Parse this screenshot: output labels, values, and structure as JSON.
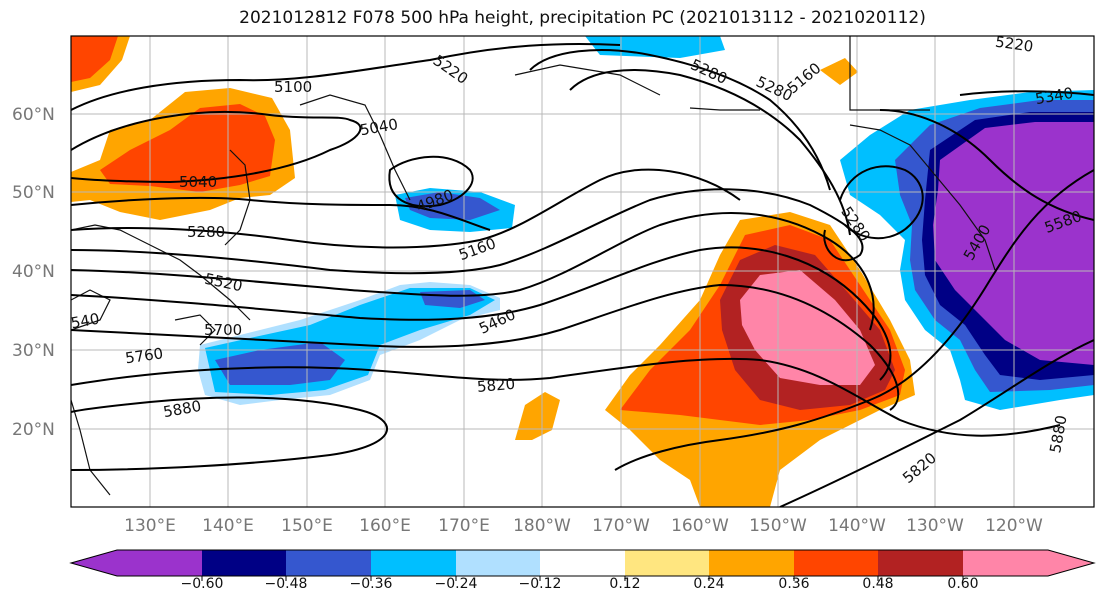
{
  "title": "2021012812 F078 500 hPa height, precipitation PC (2021013112 - 2021020112)",
  "map": {
    "lat_labels": [
      "60°N",
      "50°N",
      "40°N",
      "30°N",
      "20°N"
    ],
    "lon_labels": [
      "130°E",
      "140°E",
      "150°E",
      "160°E",
      "170°E",
      "180°W",
      "170°W",
      "160°W",
      "150°W",
      "140°W",
      "130°W",
      "120°W"
    ],
    "contour_labels": [
      "5100",
      "5220",
      "5280",
      "5280",
      "5160",
      "5040",
      "5040",
      "4980",
      "5160",
      "5280",
      "5520",
      "5460",
      "5700",
      "5760",
      "5820",
      "5880",
      "5820",
      "5880",
      "5220",
      "5340",
      "5400",
      "5580",
      "5280",
      "540"
    ]
  },
  "colorbar": {
    "colors": [
      "#9b33cc",
      "#000085",
      "#3557cf",
      "#00bfff",
      "#b0e0ff",
      "#ffffff",
      "#ffe680",
      "#ffa500",
      "#ff4500",
      "#b22222",
      "#ff85a8"
    ],
    "tick_labels": [
      "−0.60",
      "−0.48",
      "−0.36",
      "−0.24",
      "−0.12",
      "0.12",
      "0.24",
      "0.36",
      "0.48",
      "0.60"
    ]
  }
}
